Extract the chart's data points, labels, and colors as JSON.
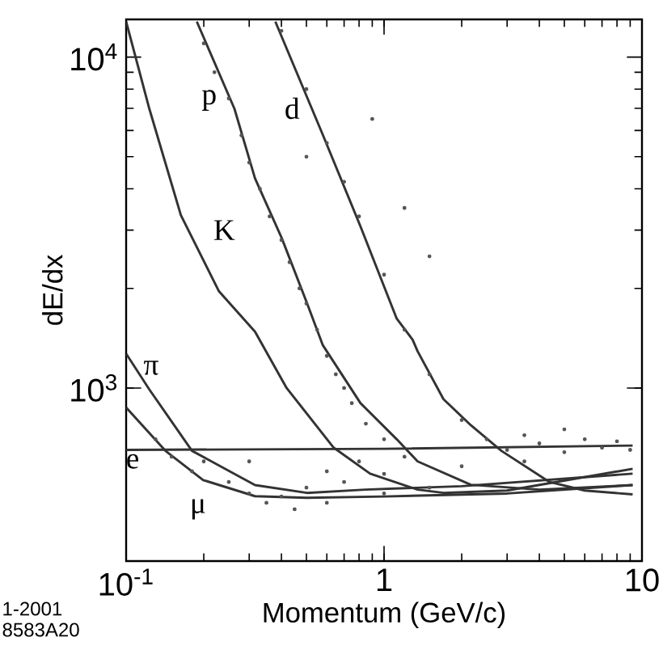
{
  "chart_data": {
    "type": "line",
    "xlabel": "Momentum  (GeV/c)",
    "ylabel": "dE/dx",
    "log": "xy",
    "grid": false,
    "xlim": [
      0.1,
      10
    ],
    "ylim": [
      300,
      13000
    ],
    "xticks": [
      {
        "value": 0.1,
        "label": "10$^{-1}$"
      },
      1,
      10
    ],
    "yticks": [
      {
        "value": 1000,
        "label": "10$^{3}$"
      },
      {
        "value": 10000,
        "label": "10$^{4}$"
      }
    ],
    "annotations": [
      "1-2001",
      "8583A20"
    ],
    "series": [
      {
        "type": "scatter",
        "marker": "circle",
        "color": "#555555",
        "x": [
          0.2,
          0.22,
          0.25,
          0.28,
          0.3,
          0.33,
          0.36,
          0.4,
          0.43,
          0.47,
          0.5,
          0.55,
          0.6,
          0.65,
          0.7,
          0.75,
          0.85,
          1.0,
          0.4,
          0.5,
          0.6,
          0.7,
          0.8,
          1.0,
          1.2,
          1.5,
          2.0,
          0.13,
          0.15,
          0.18,
          0.2,
          0.25,
          0.3,
          0.35,
          0.4,
          0.45,
          0.5,
          0.6,
          0.7,
          0.8,
          1.0,
          1.2,
          1.5,
          2,
          2.5,
          3,
          3.5,
          4,
          5,
          6,
          7,
          8,
          9,
          3.5,
          5,
          0.3,
          0.6,
          1.0,
          0.5,
          0.9,
          1.2,
          1.5
        ],
        "values": [
          11000,
          9000,
          7500,
          5800,
          4800,
          4000,
          3300,
          2800,
          2400,
          2000,
          1800,
          1500,
          1250,
          1100,
          1000,
          900,
          780,
          700,
          12000,
          8000,
          5500,
          4200,
          3300,
          2200,
          1500,
          1100,
          800,
          700,
          620,
          560,
          600,
          520,
          480,
          450,
          470,
          430,
          500,
          560,
          520,
          600,
          550,
          620,
          500,
          580,
          700,
          650,
          720,
          680,
          640,
          700,
          660,
          690,
          650,
          600,
          750,
          600,
          450,
          480,
          5000,
          6500,
          3500,
          2500
        ]
      },
      {
        "name": "e",
        "marker": "none",
        "color": "#333333",
        "x": [
          0.1,
          1,
          9.2
        ],
        "values": [
          650,
          655,
          670
        ]
      },
      {
        "name": "μ",
        "marker": "none",
        "color": "#333333",
        "x": [
          0.1,
          0.142,
          0.199,
          0.316,
          0.502,
          1,
          3,
          9.2
        ],
        "values": [
          873,
          646,
          527,
          471,
          466,
          470,
          480,
          509
        ]
      },
      {
        "name": "π",
        "marker": "none",
        "color": "#333333",
        "x": [
          0.1,
          0.123,
          0.18,
          0.316,
          0.502,
          0.846,
          2,
          9.2
        ],
        "values": [
          1270,
          990,
          646,
          509,
          482,
          493,
          505,
          551
        ]
      },
      {
        "name": "K",
        "marker": "none",
        "color": "#333333",
        "x": [
          0.1,
          0.123,
          0.163,
          0.229,
          0.316,
          0.419,
          0.638,
          0.883,
          1.35,
          1.7,
          3,
          9.2
        ],
        "values": [
          12800,
          6980,
          3330,
          1960,
          1480,
          1000,
          660,
          551,
          493,
          482,
          490,
          570
        ]
      },
      {
        "name": "p",
        "marker": "none",
        "color": "#333333",
        "x": [
          0.188,
          0.263,
          0.316,
          0.401,
          0.502,
          0.578,
          0.81,
          1.12,
          1.35,
          2.17,
          4,
          9.2
        ],
        "values": [
          12800,
          6980,
          4300,
          2840,
          1810,
          1350,
          900,
          700,
          600,
          510,
          493,
          509
        ]
      },
      {
        "name": "d",
        "marker": "none",
        "color": "#333333",
        "x": [
          0.379,
          0.578,
          0.81,
          1.12,
          1.29,
          1.35,
          1.7,
          2.17,
          2.85,
          4.38,
          6,
          9.2
        ],
        "values": [
          12800,
          5840,
          3080,
          1620,
          1400,
          1290,
          925,
          772,
          646,
          520,
          490,
          477
        ]
      }
    ]
  }
}
